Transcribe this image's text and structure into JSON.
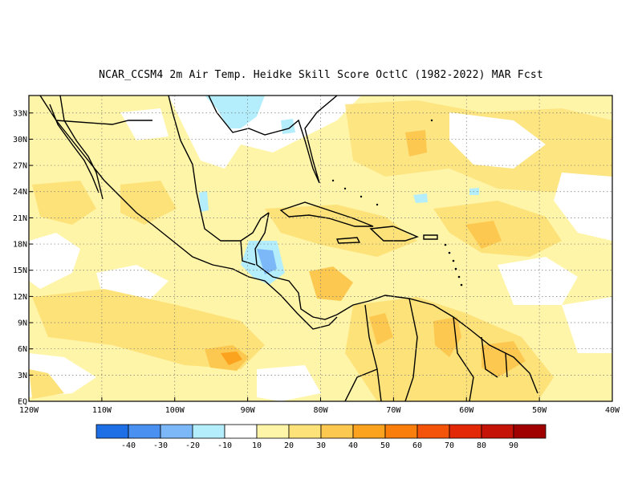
{
  "title": "NCAR_CCSM4  2m Air Temp. Heidke Skill Score OctlC (1982-2022) MAR Fcst",
  "map": {
    "lat_labels": [
      "33N",
      "30N",
      "27N",
      "24N",
      "21N",
      "18N",
      "15N",
      "12N",
      "9N",
      "6N",
      "3N",
      "EQ"
    ],
    "lon_labels": [
      "120W",
      "110W",
      "100W",
      "90W",
      "80W",
      "70W",
      "60W",
      "50W",
      "40W"
    ],
    "lat_range": [
      0,
      35
    ],
    "lon_range": [
      -120,
      -40
    ],
    "grid": "dotted"
  },
  "colorbar": {
    "labels": [
      "-40",
      "-30",
      "-20",
      "-10",
      "10",
      "20",
      "30",
      "40",
      "50",
      "60",
      "70",
      "80",
      "90"
    ],
    "colors": [
      "#1e6fe6",
      "#4a90f0",
      "#7cb8f8",
      "#b4eefc",
      "#ffffff",
      "#fff5a8",
      "#fde27a",
      "#fcc84f",
      "#fba21f",
      "#f97e0c",
      "#f45409",
      "#e32808",
      "#c61307",
      "#a00000"
    ]
  },
  "palette": {
    "ocean_light": "#fff8c4",
    "yellow": "#fde27a",
    "orange_light": "#fcc84f",
    "orange": "#fba21f",
    "blue_light": "#b4eefc",
    "blue": "#7cb8f8",
    "coast": "#000000"
  }
}
